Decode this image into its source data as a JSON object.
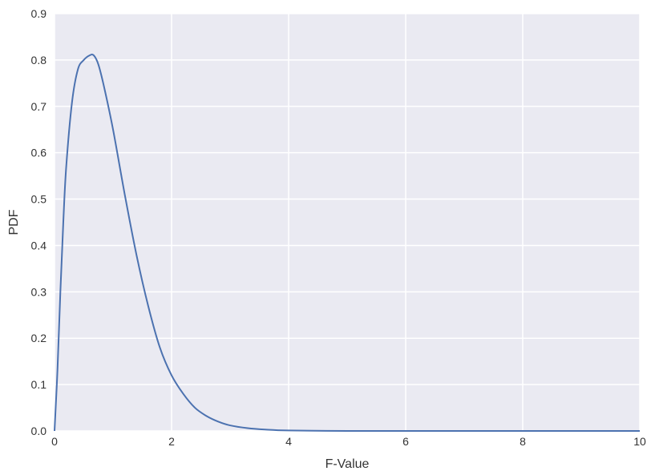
{
  "chart_data": {
    "type": "line",
    "title": "",
    "xlabel": "F-Value",
    "ylabel": "PDF",
    "xlim": [
      0,
      10
    ],
    "ylim": [
      0,
      0.9
    ],
    "xticks": [
      0,
      2,
      4,
      6,
      8,
      10
    ],
    "xtick_labels": [
      "0",
      "2",
      "4",
      "6",
      "8",
      "10"
    ],
    "yticks": [
      0.0,
      0.1,
      0.2,
      0.3,
      0.4,
      0.5,
      0.6,
      0.7,
      0.8,
      0.9
    ],
    "ytick_labels": [
      "0.0",
      "0.1",
      "0.2",
      "0.3",
      "0.4",
      "0.5",
      "0.6",
      "0.7",
      "0.8",
      "0.9"
    ],
    "grid": true,
    "colors": {
      "line": "#4c72b0",
      "plot_background": "#eaeaf2",
      "grid": "#ffffff"
    },
    "series": [
      {
        "x": [
          0,
          0.05,
          0.1,
          0.15,
          0.2,
          0.3,
          0.4,
          0.5,
          0.6,
          0.67,
          0.75,
          0.85,
          1.0,
          1.2,
          1.4,
          1.6,
          1.8,
          2.0,
          2.2,
          2.4,
          2.6,
          2.8,
          3.0,
          3.3,
          3.6,
          4.0,
          5.0,
          6.0,
          8.0,
          10.0
        ],
        "y": [
          0,
          0.13,
          0.3,
          0.45,
          0.57,
          0.71,
          0.78,
          0.8,
          0.81,
          0.81,
          0.79,
          0.74,
          0.65,
          0.51,
          0.38,
          0.27,
          0.18,
          0.12,
          0.08,
          0.05,
          0.032,
          0.02,
          0.012,
          0.006,
          0.003,
          0.001,
          0.0,
          0.0,
          0.0,
          0.0
        ]
      }
    ]
  }
}
